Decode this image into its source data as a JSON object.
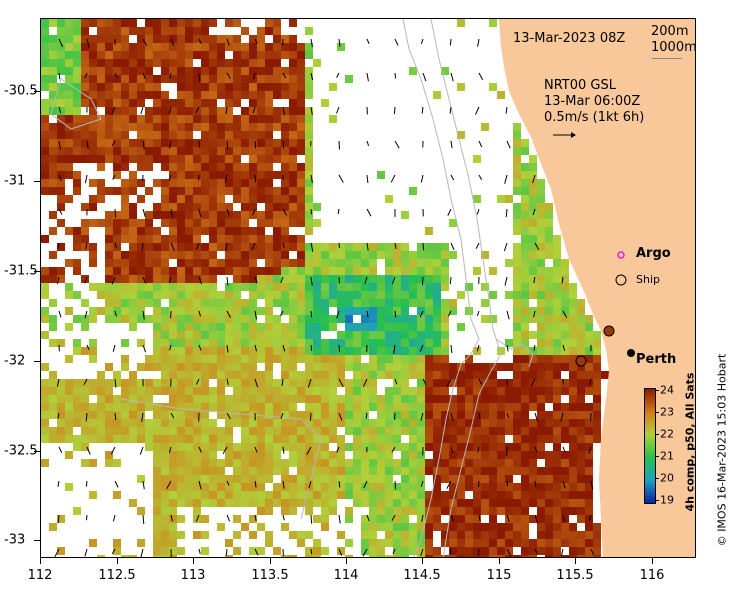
{
  "timestamp": "13-Mar-2023 08Z",
  "contour_legend": {
    "depth1": "200m",
    "depth2": "1000m"
  },
  "current_info": {
    "line1": "NRT00 GSL",
    "line2": "13-Mar 06:00Z",
    "line3": "0.5m/s (1kt 6h)"
  },
  "markers": {
    "argo": "Argo",
    "ship": "Ship",
    "city": "Perth"
  },
  "colorbar": {
    "title": "4h comp, p50, All Sats",
    "ticks": [
      "24",
      "23",
      "22",
      "21",
      "20",
      "19"
    ],
    "colors": {
      "24": "#8b1a00",
      "23": "#d27a1a",
      "22": "#b0d03a",
      "21": "#28c04a",
      "20": "#1ea0c0",
      "19": "#1020a0"
    }
  },
  "credit": "© IMOS 16-Mar-2023 15:03 Hobart",
  "axes": {
    "x_ticks": [
      "112",
      "112.5",
      "113",
      "113.5",
      "114",
      "114.5",
      "115",
      "115.5",
      "116"
    ],
    "y_ticks": [
      "-30.5",
      "-31",
      "-31.5",
      "-32",
      "-32.5",
      "-33"
    ]
  },
  "chart_data": {
    "type": "heatmap",
    "title": "",
    "xlabel": "",
    "ylabel": "",
    "xlim": [
      112,
      116.3
    ],
    "ylim": [
      -33.1,
      -30.1
    ],
    "colorbar_range": [
      19,
      24
    ],
    "land_color": "#f8c89a"
  }
}
